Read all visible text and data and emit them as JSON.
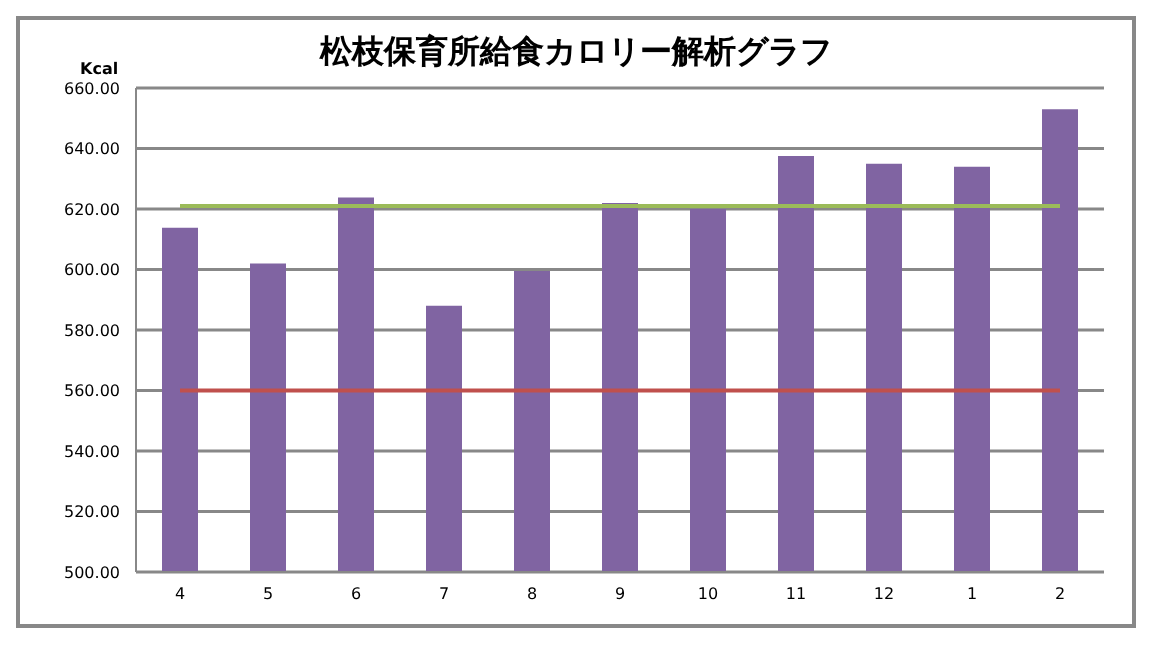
{
  "chart_data": {
    "type": "bar",
    "title": "松枝保育所給食カロリー解析グラフ",
    "ylabel": "Kcal",
    "categories": [
      "4",
      "5",
      "6",
      "7",
      "8",
      "9",
      "10",
      "11",
      "12",
      "1",
      "2"
    ],
    "series": [
      {
        "color": "#8064a2",
        "values": [
          613.8,
          602,
          623.8,
          588,
          599.5,
          622,
          620,
          637.5,
          635,
          634,
          653
        ]
      },
      {
        "type": "line",
        "color": "#9bbb59",
        "values": [
          621,
          621,
          621,
          621,
          621,
          621,
          621,
          621,
          621,
          621,
          621
        ]
      },
      {
        "type": "line",
        "color": "#c0504d",
        "values": [
          560,
          560,
          560,
          560,
          560,
          560,
          560,
          560,
          560,
          560,
          560
        ]
      }
    ],
    "ylim": [
      500,
      660
    ],
    "yticks": [
      {
        "value": 500,
        "label": "500.00"
      },
      {
        "value": 520,
        "label": "520.00"
      },
      {
        "value": 540,
        "label": "540.00"
      },
      {
        "value": 560,
        "label": "560.00"
      },
      {
        "value": 580,
        "label": "580.00"
      },
      {
        "value": 600,
        "label": "600.00"
      },
      {
        "value": 620,
        "label": "620.00"
      },
      {
        "value": 640,
        "label": "640.00"
      },
      {
        "value": 660,
        "label": "660.00"
      }
    ],
    "grid": "y",
    "legend": false,
    "marker": "none",
    "line_style": "solid"
  }
}
